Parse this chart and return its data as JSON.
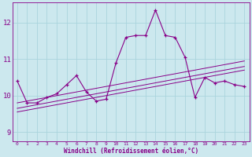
{
  "xlabel": "Windchill (Refroidissement éolien,°C)",
  "background_color": "#cce8ee",
  "grid_color": "#aad4dd",
  "line_color": "#880088",
  "xlim": [
    -0.5,
    23.5
  ],
  "ylim": [
    8.75,
    12.55
  ],
  "xticks": [
    0,
    1,
    2,
    3,
    4,
    5,
    6,
    7,
    8,
    9,
    10,
    11,
    12,
    13,
    14,
    15,
    16,
    17,
    18,
    19,
    20,
    21,
    22,
    23
  ],
  "yticks": [
    9,
    10,
    11,
    12
  ],
  "main_series": [
    10.4,
    9.8,
    9.8,
    9.95,
    10.05,
    10.3,
    10.55,
    10.1,
    9.85,
    9.9,
    10.9,
    11.6,
    11.65,
    11.65,
    12.35,
    11.65,
    11.6,
    11.05,
    9.95,
    10.5,
    10.35,
    10.4,
    10.3,
    10.25
  ],
  "smooth_line1": [
    9.55,
    9.6,
    9.65,
    9.7,
    9.75,
    9.8,
    9.85,
    9.9,
    9.95,
    10.0,
    10.05,
    10.1,
    10.15,
    10.2,
    10.25,
    10.3,
    10.35,
    10.4,
    10.45,
    10.5,
    10.55,
    10.6,
    10.65,
    10.7
  ],
  "smooth_line2": [
    9.65,
    9.7,
    9.75,
    9.8,
    9.85,
    9.9,
    9.95,
    10.0,
    10.05,
    10.1,
    10.15,
    10.2,
    10.25,
    10.3,
    10.35,
    10.4,
    10.45,
    10.5,
    10.55,
    10.6,
    10.65,
    10.7,
    10.75,
    10.8
  ],
  "smooth_line3": [
    9.8,
    9.85,
    9.9,
    9.95,
    10.0,
    10.05,
    10.1,
    10.15,
    10.2,
    10.25,
    10.3,
    10.35,
    10.4,
    10.45,
    10.5,
    10.55,
    10.6,
    10.65,
    10.7,
    10.75,
    10.8,
    10.85,
    10.9,
    10.95
  ]
}
